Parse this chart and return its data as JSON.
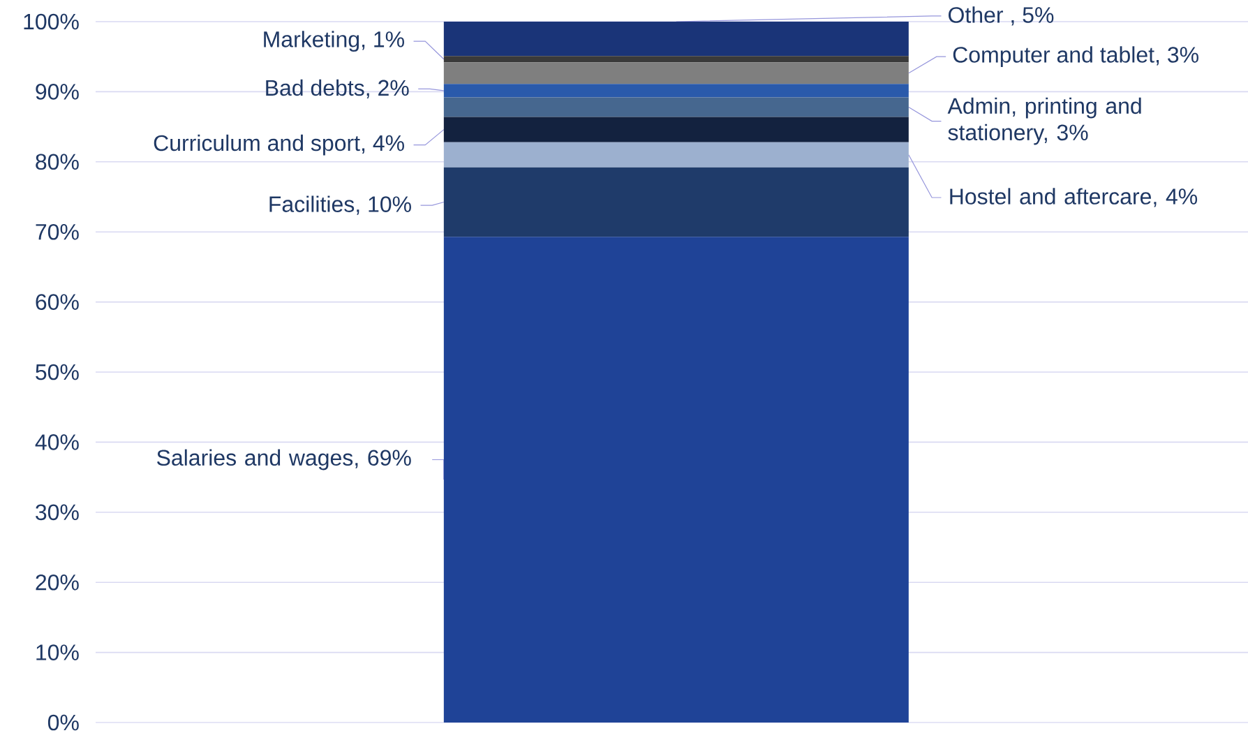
{
  "chart_data": {
    "type": "bar",
    "stacked": true,
    "categories": [
      null
    ],
    "series": [
      {
        "color": "#1f4397",
        "values": [
          69.3
        ],
        "value_labels": [
          "Salaries and wages, 69%"
        ]
      },
      {
        "color": "#1f3b6a",
        "values": [
          9.9
        ],
        "value_labels": [
          "Facilities, 10%"
        ]
      },
      {
        "color": "#9cb0cf",
        "values": [
          3.6
        ],
        "value_labels": [
          "Hostel and aftercare, 4%"
        ]
      },
      {
        "color": "#13223f",
        "values": [
          3.6
        ],
        "value_labels": [
          "Curriculum and sport, 4%"
        ]
      },
      {
        "color": "#46678f",
        "values": [
          2.8
        ],
        "value_labels": [
          "Admin, printing and stationery, 3%"
        ]
      },
      {
        "color": "#2a5aab",
        "values": [
          1.9
        ],
        "value_labels": [
          "Bad debts, 2%"
        ]
      },
      {
        "color": "#7f7f7f",
        "values": [
          3.1
        ],
        "value_labels": [
          "Computer and tablet, 3%"
        ]
      },
      {
        "color": "#3a3a3a",
        "values": [
          0.9
        ],
        "value_labels": [
          "Marketing, 1%"
        ]
      },
      {
        "color": "#1a3478",
        "values": [
          4.9
        ],
        "value_labels": [
          "Other , 5%"
        ]
      }
    ],
    "ylim": [
      0,
      100
    ],
    "yticks": [
      {
        "value": 0,
        "label": "0%"
      },
      {
        "value": 10,
        "label": "10%"
      },
      {
        "value": 20,
        "label": "20%"
      },
      {
        "value": 30,
        "label": "30%"
      },
      {
        "value": 40,
        "label": "40%"
      },
      {
        "value": 50,
        "label": "50%"
      },
      {
        "value": 60,
        "label": "60%"
      },
      {
        "value": 70,
        "label": "70%"
      },
      {
        "value": 80,
        "label": "80%"
      },
      {
        "value": 90,
        "label": "90%"
      },
      {
        "value": 100,
        "label": "100%"
      }
    ],
    "grid": "y"
  }
}
